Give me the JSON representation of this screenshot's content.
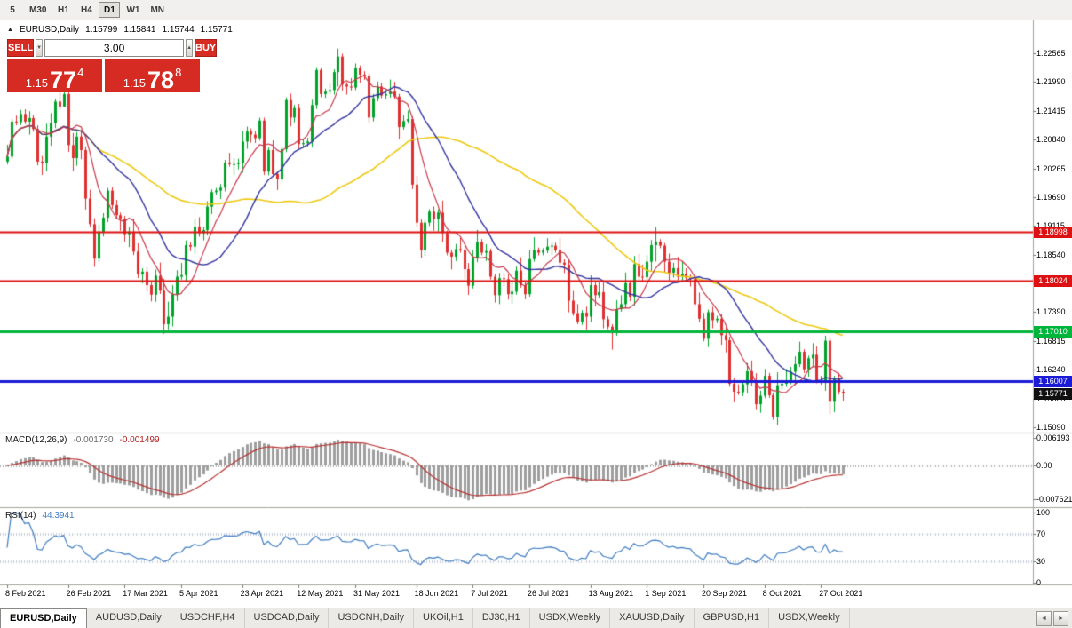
{
  "toolbar": {
    "periods": [
      {
        "label": "5",
        "active": false
      },
      {
        "label": "M30",
        "active": false
      },
      {
        "label": "H1",
        "active": false
      },
      {
        "label": "H4",
        "active": false
      },
      {
        "label": "D1",
        "active": true
      },
      {
        "label": "W1",
        "active": false
      },
      {
        "label": "MN",
        "active": false
      }
    ]
  },
  "chart_header": {
    "collapse_icon": "▲",
    "symbol": "EURUSD,Daily",
    "open": "1.15799",
    "high": "1.15841",
    "low": "1.15744",
    "close": "1.15771"
  },
  "trade_panel": {
    "sell_label": "SELL",
    "buy_label": "BUY",
    "volume": "3.00",
    "spinner_down_glyph": "▼",
    "spinner_up_glyph": "▲",
    "bid": {
      "prefix": "1.15",
      "main": "77",
      "sup": "4"
    },
    "ask": {
      "prefix": "1.15",
      "main": "78",
      "sup": "8"
    }
  },
  "chart_data": {
    "type": "candlestick",
    "title": "EURUSD,Daily",
    "first_open": 1.204,
    "closes": [
      1.205,
      1.212,
      1.2119,
      1.2135,
      1.212,
      1.2127,
      1.2105,
      1.204,
      1.2037,
      1.209,
      1.2117,
      1.216,
      1.215,
      1.2175,
      1.2073,
      1.2047,
      1.209,
      1.2063,
      1.1966,
      1.1915,
      1.1846,
      1.19,
      1.1928,
      1.1982,
      1.1953,
      1.1933,
      1.1926,
      1.1895,
      1.19,
      1.186,
      1.1815,
      1.182,
      1.1793,
      1.1774,
      1.1812,
      1.1782,
      1.1715,
      1.173,
      1.1775,
      1.181,
      1.1813,
      1.1873,
      1.187,
      1.191,
      1.1897,
      1.1903,
      1.195,
      1.1979,
      1.1982,
      1.1988,
      1.2038,
      1.2035,
      1.2035,
      1.2037,
      1.208,
      1.21,
      1.2094,
      1.2087,
      1.2122,
      1.202,
      1.2063,
      1.2015,
      1.2005,
      1.2065,
      1.2163,
      1.2128,
      1.2147,
      1.2075,
      1.2077,
      1.208,
      1.2153,
      1.2223,
      1.2175,
      1.218,
      1.2183,
      1.2219,
      1.225,
      1.2194,
      1.219,
      1.2188,
      1.2227,
      1.2214,
      1.2212,
      1.2128,
      1.2167,
      1.219,
      1.2172,
      1.2175,
      1.218,
      1.217,
      1.2109,
      1.2121,
      1.2125,
      1.1994,
      1.1918,
      1.1863,
      1.1918,
      1.194,
      1.1925,
      1.1938,
      1.1897,
      1.1858,
      1.185,
      1.1865,
      1.1863,
      1.1825,
      1.1792,
      1.1847,
      1.1879,
      1.1858,
      1.1861,
      1.181,
      1.1773,
      1.1807,
      1.1805,
      1.1775,
      1.178,
      1.1822,
      1.1793,
      1.1775,
      1.1845,
      1.1863,
      1.1858,
      1.1862,
      1.187,
      1.1872,
      1.1863,
      1.1838,
      1.1834,
      1.1762,
      1.1737,
      1.172,
      1.1738,
      1.173,
      1.1793,
      1.1773,
      1.1779,
      1.1725,
      1.171,
      1.1697,
      1.1745,
      1.1755,
      1.1797,
      1.177,
      1.1835,
      1.181,
      1.1809,
      1.184,
      1.1873,
      1.188,
      1.1872,
      1.184,
      1.1818,
      1.1827,
      1.181,
      1.1816,
      1.1808,
      1.1805,
      1.1755,
      1.1726,
      1.1686,
      1.1739,
      1.1723,
      1.1726,
      1.1693,
      1.1683,
      1.1596,
      1.158,
      1.1579,
      1.1595,
      1.1621,
      1.1598,
      1.1555,
      1.1572,
      1.1612,
      1.1573,
      1.153,
      1.1593,
      1.1596,
      1.16,
      1.162,
      1.1635,
      1.166,
      1.1625,
      1.1647,
      1.1654,
      1.1602,
      1.1599,
      1.1682,
      1.156,
      1.1606,
      1.158,
      1.15771
    ],
    "wick_overrides": {
      "13": [
        1.2243,
        1.215
      ],
      "37": [
        1.176,
        1.1704
      ],
      "76": [
        1.2266,
        1.219
      ],
      "93": [
        1.213,
        1.1985
      ],
      "95": [
        1.1925,
        1.1847
      ],
      "139": [
        1.1715,
        1.1664
      ],
      "149": [
        1.1909,
        1.184
      ],
      "166": [
        1.169,
        1.159
      ],
      "176": [
        1.1578,
        1.1524
      ],
      "188": [
        1.1692,
        1.1582
      ],
      "189": [
        1.1689,
        1.1535
      ],
      "192": [
        1.1585,
        1.1562
      ]
    },
    "candle_colors": {
      "up": "#00a32a",
      "down": "#e02f2f"
    },
    "y_axis": {
      "values": [
        1.22565,
        1.2199,
        1.21415,
        1.2084,
        1.20265,
        1.1969,
        1.19115,
        1.1854,
        1.17965,
        1.1739,
        1.16815,
        1.1624,
        1.15665,
        1.1509
      ]
    },
    "x_labels": [
      {
        "text": "8 Feb 2021",
        "i": 0
      },
      {
        "text": "26 Feb 2021",
        "i": 14
      },
      {
        "text": "17 Mar 2021",
        "i": 27
      },
      {
        "text": "5 Apr 2021",
        "i": 40
      },
      {
        "text": "23 Apr 2021",
        "i": 54
      },
      {
        "text": "12 May 2021",
        "i": 67
      },
      {
        "text": "31 May 2021",
        "i": 80
      },
      {
        "text": "18 Jun 2021",
        "i": 94
      },
      {
        "text": "7 Jul 2021",
        "i": 107
      },
      {
        "text": "26 Jul 2021",
        "i": 120
      },
      {
        "text": "13 Aug 2021",
        "i": 134
      },
      {
        "text": "1 Sep 2021",
        "i": 147
      },
      {
        "text": "20 Sep 2021",
        "i": 160
      },
      {
        "text": "8 Oct 2021",
        "i": 174
      },
      {
        "text": "27 Oct 2021",
        "i": 187
      }
    ],
    "moving_averages": [
      {
        "name": "slow",
        "period": 55,
        "color": "#edc80f",
        "width": 1.6
      },
      {
        "name": "medium",
        "period": 20,
        "color": "#3333a0",
        "width": 1.4
      },
      {
        "name": "fast",
        "period": 8,
        "color": "#c8384a",
        "width": 1.2
      }
    ],
    "h_lines": [
      {
        "price": 1.18998,
        "label": "1.18998",
        "color": "#dd1111",
        "width": 2
      },
      {
        "price": 1.18024,
        "label": "1.18024",
        "color": "#dd1111",
        "width": 2
      },
      {
        "price": 1.1701,
        "label": "1.17010",
        "color": "#00b43c",
        "width": 3
      },
      {
        "price": 1.16007,
        "label": "1.16007",
        "color": "#1b1bd6",
        "width": 3
      }
    ],
    "current_price": {
      "value": 1.15771,
      "label": "1.15771",
      "color": "#101010"
    },
    "macd": {
      "title": "MACD(12,26,9)",
      "value_main": "-0.001730",
      "value_signal": "-0.001499",
      "fast": 12,
      "slow": 26,
      "signal_period": 9,
      "histogram_color": "#9e9e9e",
      "signal_color": "#b73333",
      "axis": [
        {
          "label": "0.006193",
          "value": 0.006193
        },
        {
          "label": "0.00",
          "value": 0
        },
        {
          "label": "-0.007621",
          "value": -0.007621
        }
      ]
    },
    "rsi": {
      "title": "RSI(14)",
      "value": "44.3941",
      "period": 14,
      "color": "#3f7cc0",
      "levels": [
        70,
        30
      ],
      "axis": [
        {
          "label": "100",
          "value": 100
        },
        {
          "label": "70",
          "value": 70
        },
        {
          "label": "30",
          "value": 30
        },
        {
          "label": "0",
          "value": 0
        }
      ]
    }
  },
  "tabs": {
    "scroll_left_glyph": "◄",
    "scroll_right_glyph": "►",
    "items": [
      {
        "label": "EURUSD,Daily",
        "active": true
      },
      {
        "label": "AUDUSD,Daily",
        "active": false
      },
      {
        "label": "USDCHF,H4",
        "active": false
      },
      {
        "label": "USDCAD,Daily",
        "active": false
      },
      {
        "label": "USDCNH,Daily",
        "active": false
      },
      {
        "label": "UKOil,H1",
        "active": false
      },
      {
        "label": "DJ30,H1",
        "active": false
      },
      {
        "label": "USDX,Weekly",
        "active": false
      },
      {
        "label": "XAUUSD,Daily",
        "active": false
      },
      {
        "label": "GBPUSD,H1",
        "active": false
      },
      {
        "label": "USDX,Weekly",
        "active": false
      }
    ]
  }
}
